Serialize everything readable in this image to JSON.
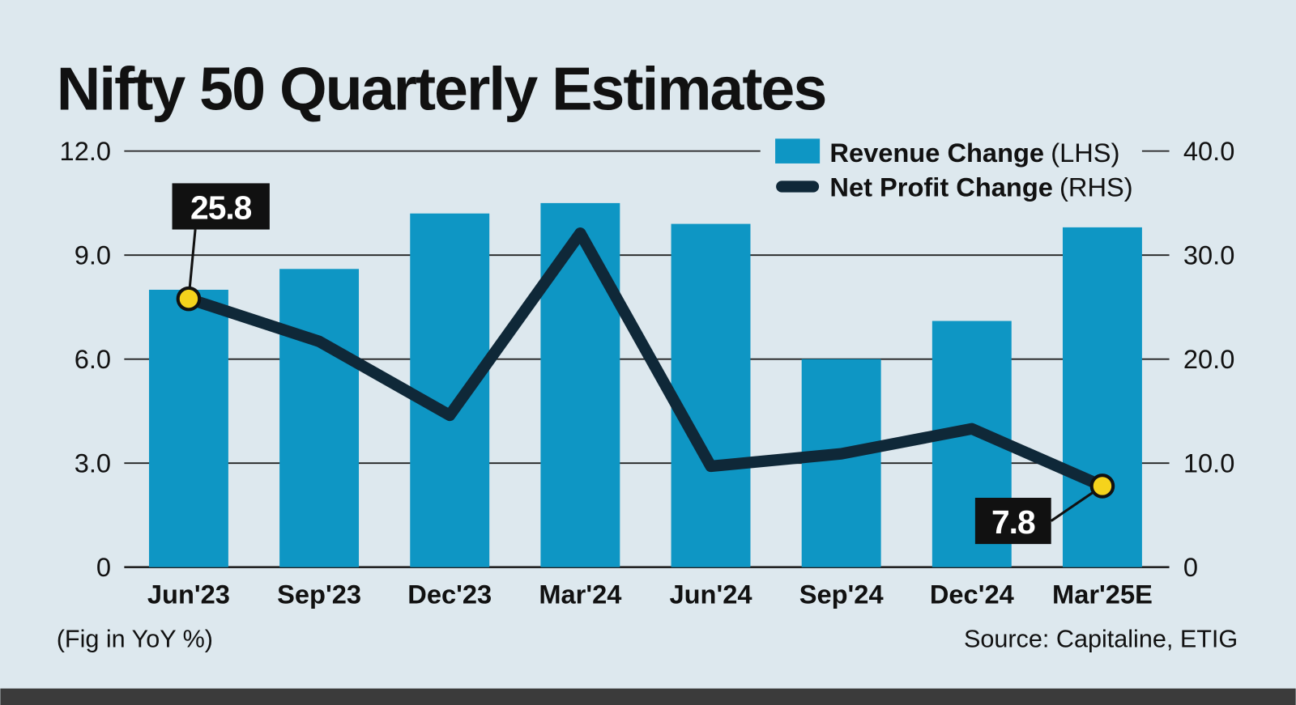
{
  "chart_data": {
    "type": "bar+line",
    "title": "Nifty 50 Quarterly Estimates",
    "categories": [
      "Jun'23",
      "Sep'23",
      "Dec'23",
      "Mar'24",
      "Jun'24",
      "Sep'24",
      "Dec'24",
      "Mar'25E"
    ],
    "series": [
      {
        "name": "Revenue Change",
        "axis_label": "(LHS)",
        "type": "bar",
        "axis": "left",
        "color": "#0e96c4",
        "values": [
          8.0,
          8.6,
          10.2,
          10.5,
          9.9,
          6.0,
          7.1,
          9.8
        ]
      },
      {
        "name": "Net Profit Change",
        "axis_label": "(RHS)",
        "type": "line",
        "axis": "right",
        "color": "#0f2838",
        "values": [
          25.8,
          21.7,
          14.6,
          32.1,
          9.7,
          10.9,
          13.3,
          7.8
        ]
      }
    ],
    "left_axis": {
      "ylim": [
        0,
        12
      ],
      "ticks": [
        "0",
        "3.0",
        "6.0",
        "9.0",
        "12.0"
      ]
    },
    "right_axis": {
      "ylim": [
        0,
        40
      ],
      "ticks": [
        "0",
        "10.0",
        "20.0",
        "30.0",
        "40.0"
      ]
    },
    "annotations": [
      {
        "category": "Jun'23",
        "text": "25.8"
      },
      {
        "category": "Mar'25E",
        "text": "7.8"
      }
    ],
    "grid": true,
    "legend": "top-right",
    "note": "(Fig in YoY %)",
    "source_prefix": "Source: ",
    "source": "Capitaline, ETIG",
    "highlight_color": "#f5d31c"
  }
}
